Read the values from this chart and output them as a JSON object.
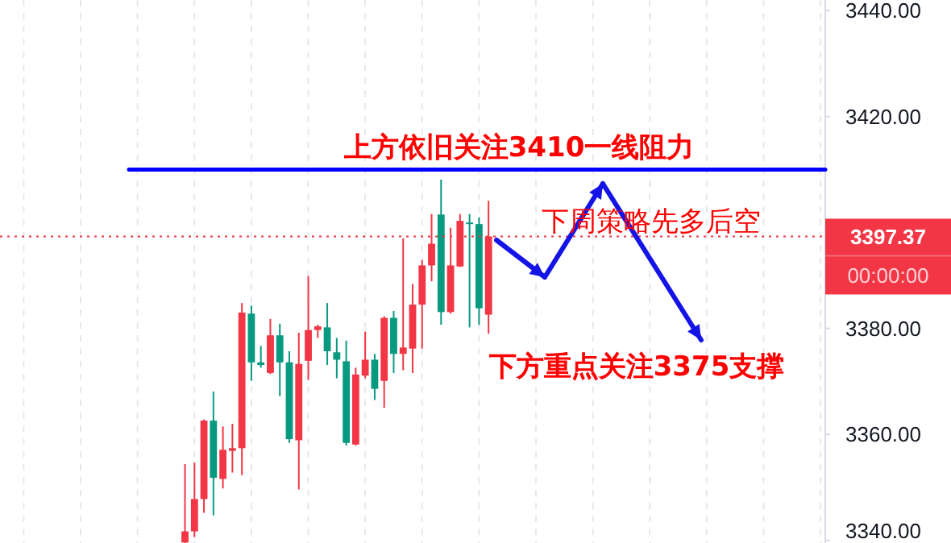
{
  "chart_data": {
    "type": "candlestick",
    "tick_labels": "y",
    "grid": "x",
    "categories": [
      null,
      null,
      null,
      null,
      null,
      null,
      null,
      null,
      null,
      null,
      null,
      null,
      null,
      null,
      null,
      null,
      null,
      null,
      null,
      null,
      null,
      null,
      null,
      null,
      null,
      null,
      null,
      null,
      null,
      null,
      null,
      null,
      null,
      null,
      null,
      null,
      null,
      null,
      null,
      null,
      null,
      null,
      null,
      null,
      null,
      null,
      null,
      null,
      null,
      null,
      null,
      null,
      null,
      null,
      null,
      null,
      null,
      null,
      null,
      null,
      null,
      null,
      null,
      null,
      null,
      null,
      null,
      null,
      null,
      null,
      null,
      null,
      null,
      null,
      null,
      null,
      null,
      null,
      null,
      null,
      null,
      null,
      null,
      null,
      null,
      null,
      null
    ],
    "ohlc": [
      null,
      null,
      null,
      null,
      null,
      null,
      null,
      null,
      null,
      null,
      null,
      null,
      null,
      null,
      null,
      null,
      null,
      null,
      null,
      [
        3339.6,
        3354.4,
        3339.5,
        3341.7
      ],
      [
        3341.7,
        3354.7,
        3340.6,
        3347.8
      ],
      [
        3347.8,
        3362.8,
        3345.2,
        3362.6
      ],
      [
        3362.6,
        3368.1,
        3344.7,
        3351.8
      ],
      [
        3351.6,
        3361.5,
        3349.8,
        3357.1
      ],
      [
        3356.9,
        3362.0,
        3352.8,
        3357.4
      ],
      [
        3357.4,
        3384.8,
        3352.3,
        3383.0
      ],
      [
        3382.8,
        3384.3,
        3370.1,
        3373.6
      ],
      [
        3373.6,
        3376.7,
        3372.6,
        3373.1
      ],
      [
        3371.6,
        3381.8,
        3371.4,
        3378.7
      ],
      [
        3378.7,
        3380.9,
        3367.2,
        3373.6
      ],
      [
        3373.6,
        3375.7,
        3358.4,
        3359.1
      ],
      [
        3358.9,
        3379.2,
        3349.6,
        3373.3
      ],
      [
        3373.9,
        3389.9,
        3370.3,
        3379.7
      ],
      [
        3379.7,
        3380.7,
        3378.2,
        3380.4
      ],
      [
        3380.2,
        3384.8,
        3373.1,
        3375.7
      ],
      [
        3375.5,
        3378.2,
        3370.6,
        3374.1
      ],
      [
        3373.8,
        3377.7,
        3357.9,
        3358.4
      ],
      [
        3358.1,
        3372.6,
        3357.9,
        3371.3
      ],
      [
        3371.1,
        3379.4,
        3370.6,
        3374.1
      ],
      [
        3374.1,
        3375.2,
        3366.5,
        3368.6
      ],
      [
        3370.1,
        3382.3,
        3365.0,
        3382.0
      ],
      [
        3382.0,
        3383.3,
        3371.6,
        3375.2
      ],
      [
        3375.2,
        3397.0,
        3372.1,
        3376.4
      ],
      [
        3376.2,
        3388.4,
        3371.6,
        3384.5
      ],
      [
        3384.5,
        3392.9,
        3376.2,
        3391.9
      ],
      [
        3391.9,
        3401.6,
        3388.9,
        3396.0
      ],
      [
        3401.5,
        3408.1,
        3380.7,
        3383.1
      ],
      [
        3383.1,
        3399.0,
        3382.8,
        3391.9
      ],
      [
        3391.7,
        3401.6,
        3391.6,
        3400.3
      ],
      [
        3400.0,
        3401.6,
        3380.2,
        3399.7
      ],
      [
        3399.7,
        3401.0,
        3380.7,
        3383.8
      ],
      [
        3382.6,
        3404.1,
        3379.0,
        3397.37
      ],
      null,
      null,
      null,
      null,
      null,
      null,
      null,
      null,
      null,
      null,
      null,
      null,
      null,
      null,
      null,
      null,
      null,
      null,
      null,
      null,
      null,
      null,
      null,
      null,
      null,
      null,
      null,
      null,
      null,
      null,
      null,
      null,
      null,
      null,
      null
    ],
    "colors": [
      null,
      null,
      null,
      null,
      null,
      null,
      null,
      null,
      null,
      null,
      null,
      null,
      null,
      null,
      null,
      null,
      null,
      null,
      null,
      "#f23645",
      "#f23645",
      "#f23645",
      "#089981",
      "#f23645",
      "#f23645",
      "#f23645",
      "#089981",
      "#089981",
      "#f23645",
      "#089981",
      "#089981",
      "#f23645",
      "#f23645",
      "#f23645",
      "#089981",
      "#089981",
      "#089981",
      "#f23645",
      "#f23645",
      "#089981",
      "#f23645",
      "#089981",
      "#f23645",
      "#f23645",
      "#f23645",
      "#f23645",
      "#089981",
      "#f23645",
      "#f23645",
      "#089981",
      "#089981",
      "#f23645",
      null,
      null,
      null,
      null,
      null,
      null,
      null,
      null,
      null,
      null,
      null,
      null,
      null,
      null,
      null,
      null,
      null,
      null,
      null,
      null,
      null,
      null,
      null,
      null,
      null,
      null,
      null,
      null,
      null,
      null,
      null,
      null,
      null,
      null,
      null
    ],
    "ylim": [
      3339.5,
      3442
    ],
    "yticks": [
      {
        "value": 3340,
        "label": "3340.00"
      },
      {
        "value": 3360,
        "label": "3360.00"
      },
      {
        "value": 3380,
        "label": "3380.00"
      },
      {
        "value": 3400,
        "label": null
      },
      {
        "value": 3420,
        "label": "3420.00"
      },
      {
        "value": 3440,
        "label": "3440.00"
      }
    ],
    "ref_lines": [
      {
        "axis": "y",
        "value": 3410,
        "label": "上方依旧关注3410一线阻力",
        "color": "#0000ff"
      },
      {
        "axis": "y",
        "value": 3397.37,
        "label": "3397.37",
        "color": "#f23645",
        "line_style": "dotted"
      }
    ],
    "annotations": [
      "下周策略先多后空",
      "下方重点关注3375支撑",
      "00:00:00"
    ]
  }
}
